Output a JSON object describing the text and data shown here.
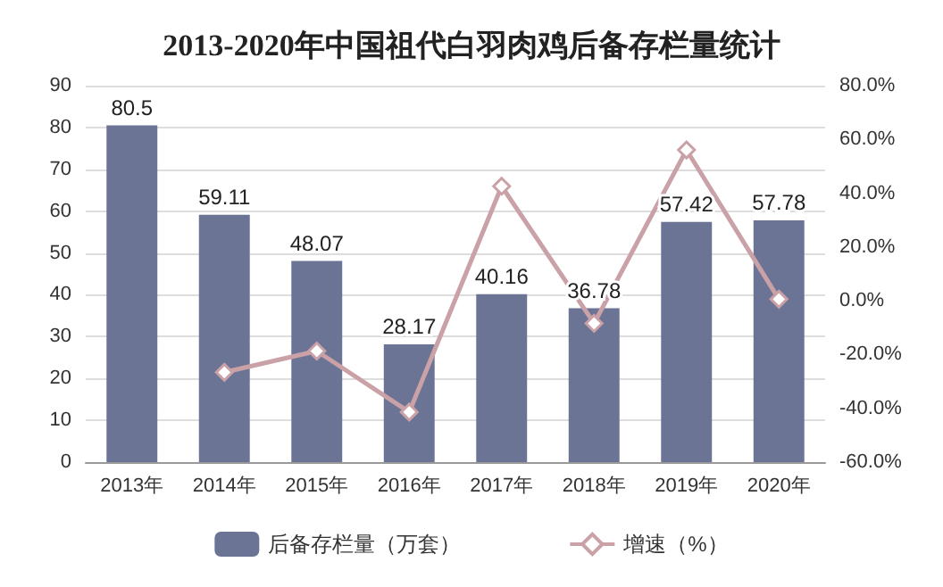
{
  "chart_data": {
    "type": "bar",
    "title": "2013-2020年中国祖代白羽肉鸡后备存栏量统计",
    "categories": [
      "2013年",
      "2014年",
      "2015年",
      "2016年",
      "2017年",
      "2018年",
      "2019年",
      "2020年"
    ],
    "series": [
      {
        "name": "后备存栏量（万套）",
        "color": "#6b7494",
        "values": [
          80.5,
          59.11,
          48.07,
          28.17,
          40.16,
          36.78,
          57.42,
          57.78
        ],
        "value_labels": [
          "80.5",
          "59.11",
          "48.07",
          "28.17",
          "40.16",
          "36.78",
          "57.42",
          "57.78"
        ]
      },
      {
        "name": "增速（%）",
        "type": "line",
        "axis": "y2",
        "color": "#c9a1a6",
        "marker": "diamond",
        "values": [
          null,
          -26.6,
          -18.7,
          -41.4,
          42.6,
          -8.4,
          56.1,
          0.6
        ]
      }
    ],
    "ylim": [
      0,
      90
    ],
    "yticks": [
      0,
      10,
      20,
      30,
      40,
      50,
      60,
      70,
      80,
      90
    ],
    "y2lim": [
      -60,
      80
    ],
    "y2ticks": [
      {
        "value": -60,
        "label": "-60.0%"
      },
      {
        "value": -40,
        "label": "-40.0%"
      },
      {
        "value": -20,
        "label": "-20.0%"
      },
      {
        "value": 0,
        "label": "0.0%"
      },
      {
        "value": 20,
        "label": "20.0%"
      },
      {
        "value": 40,
        "label": "40.0%"
      },
      {
        "value": 60,
        "label": "60.0%"
      },
      {
        "value": 80,
        "label": "80.0%"
      }
    ],
    "grid": "y",
    "legend": "bottom"
  }
}
